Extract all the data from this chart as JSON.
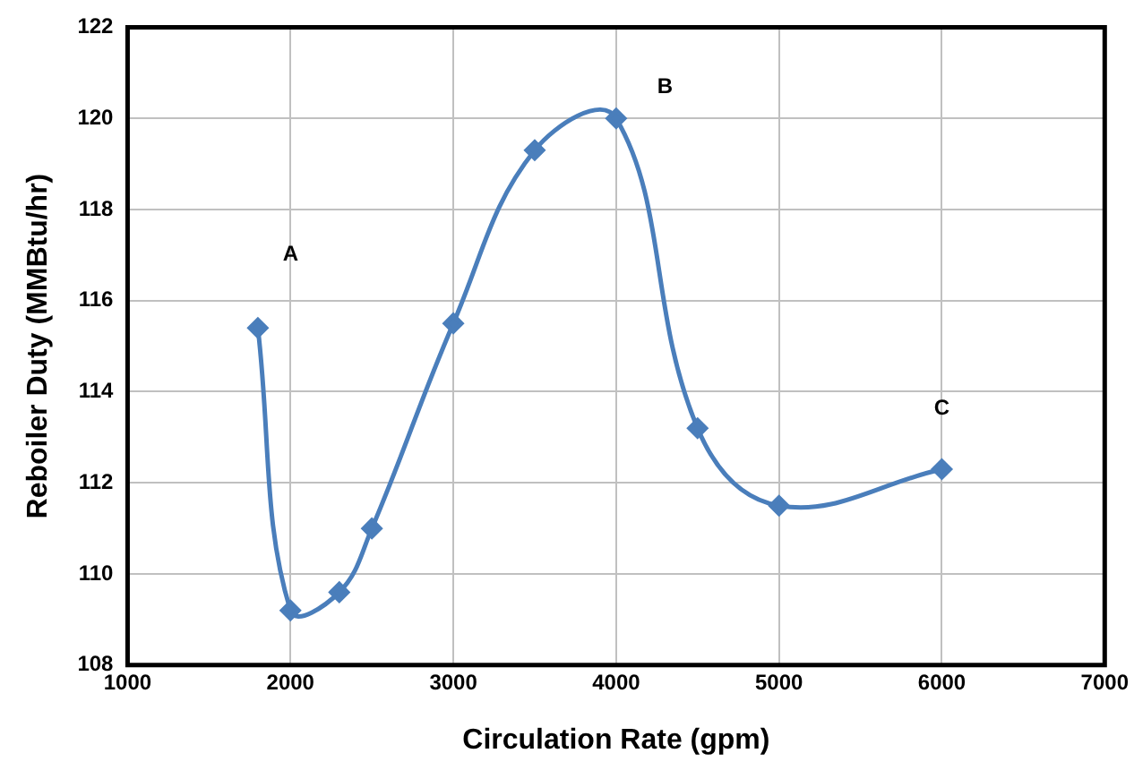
{
  "chart_data": {
    "type": "line",
    "xlabel": "Circulation Rate (gpm)",
    "ylabel": "Reboiler Duty (MMBtu/hr)",
    "x": [
      1800,
      2000,
      2300,
      2500,
      3000,
      3500,
      4000,
      4500,
      5000,
      6000
    ],
    "series": [
      {
        "color": "#4a7ebb",
        "values": [
          115.4,
          109.2,
          109.6,
          111.0,
          115.5,
          119.3,
          120.0,
          113.2,
          111.5,
          112.3
        ]
      }
    ],
    "xlim": [
      1000,
      7000
    ],
    "xticks": [
      1000,
      2000,
      3000,
      4000,
      5000,
      6000,
      7000
    ],
    "ylim": [
      108,
      122
    ],
    "yticks": [
      108,
      110,
      112,
      114,
      116,
      118,
      120,
      122
    ],
    "grid": true,
    "legend": false,
    "marker": "diamond",
    "line_style": "solid",
    "annotations": [
      "A",
      "B",
      "C"
    ]
  }
}
